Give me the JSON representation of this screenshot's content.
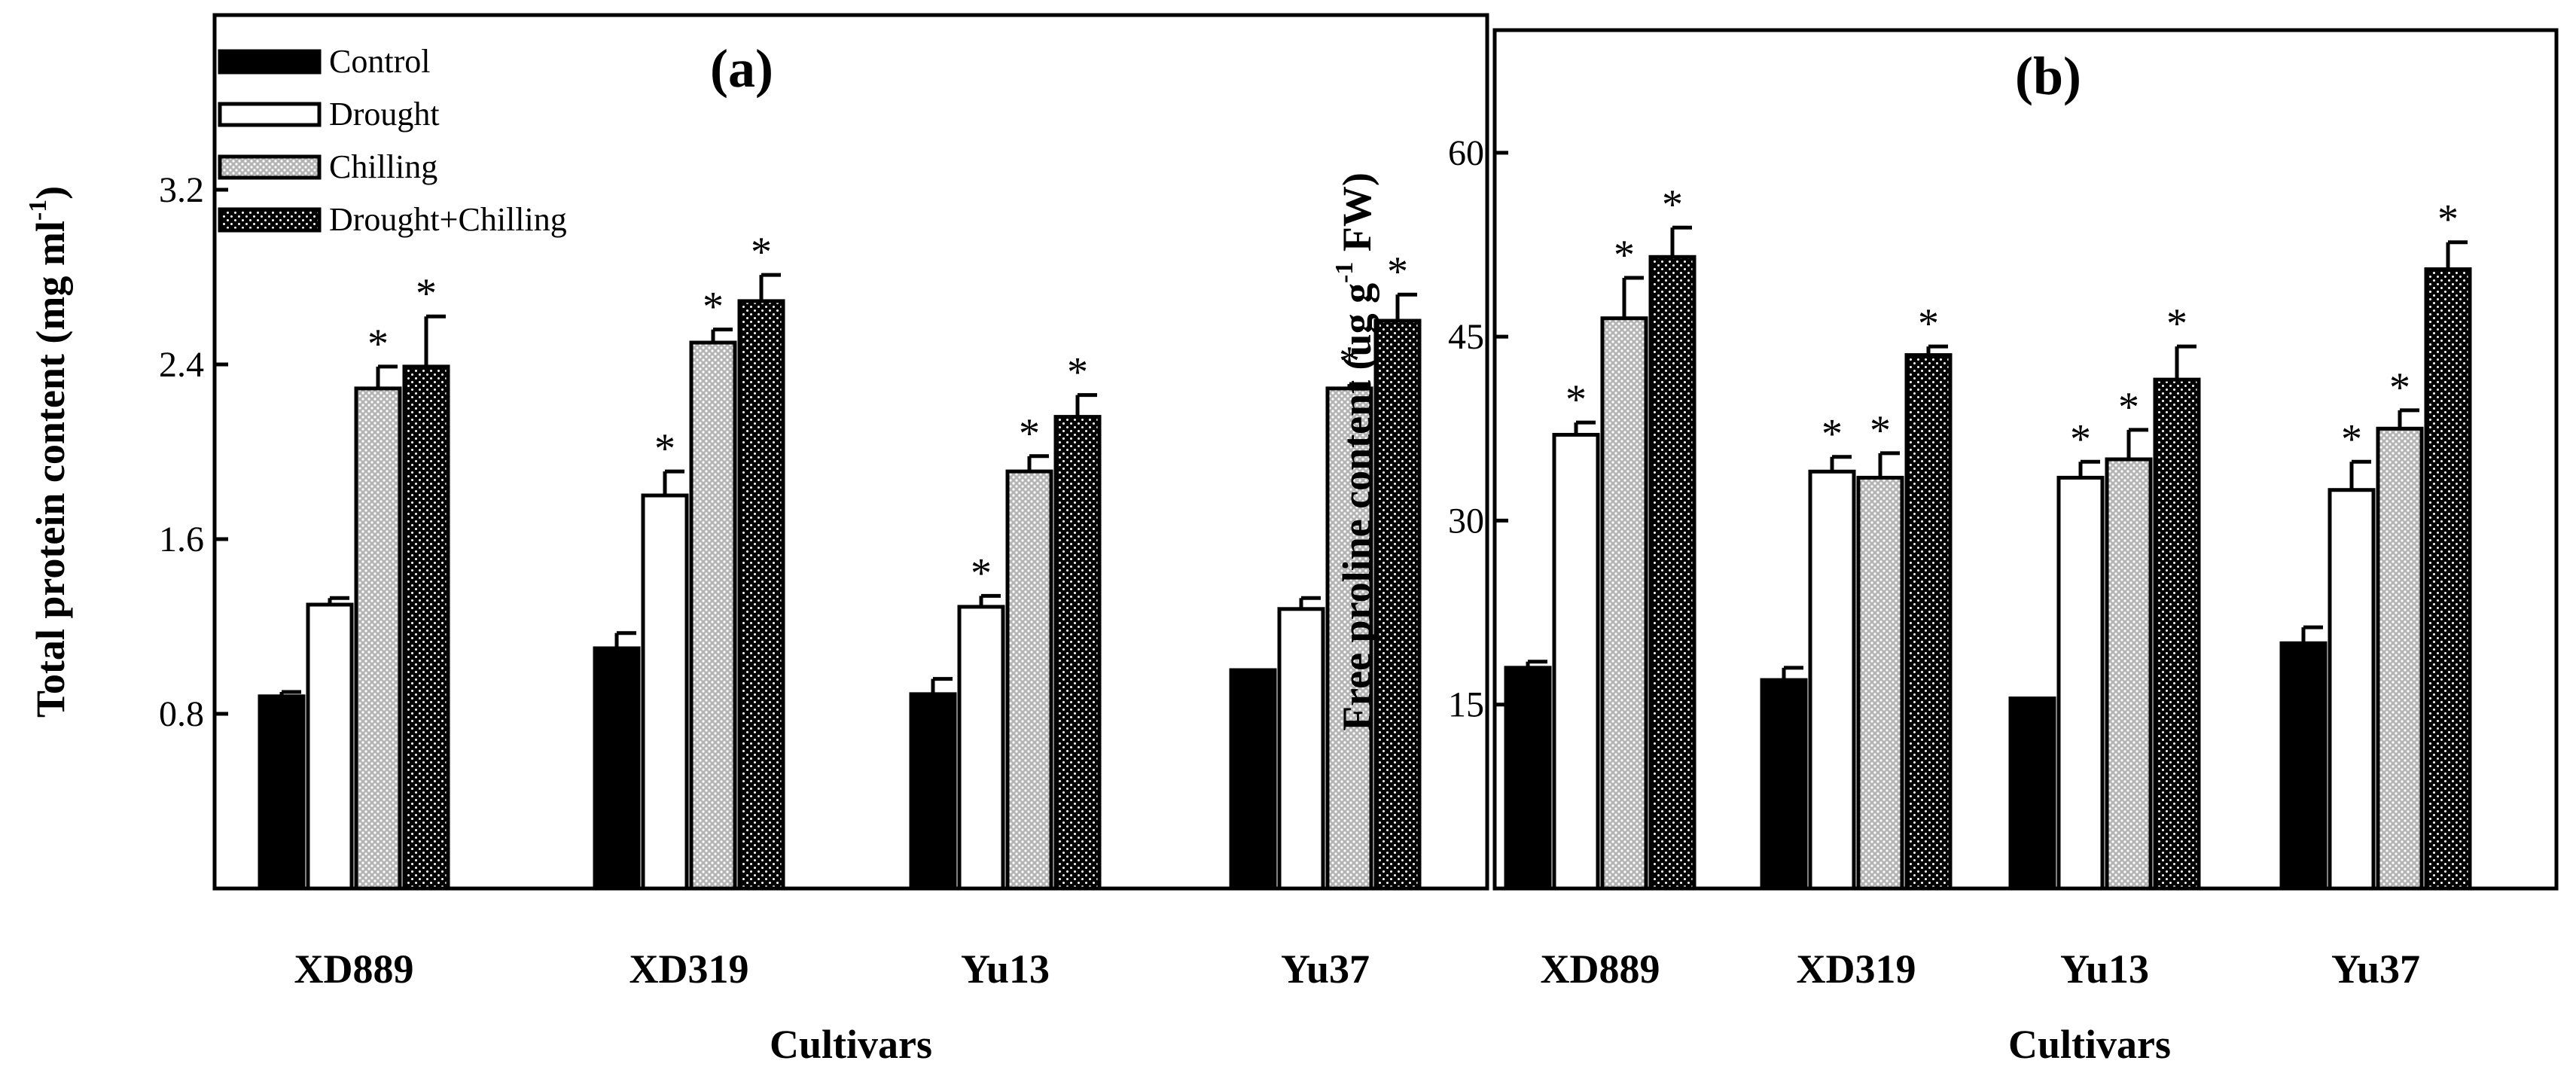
{
  "colors": {
    "Control": "#000000",
    "Drought": "#ffffff",
    "Chilling": "#c8c8c8",
    "Drought+Chilling": "#111111"
  },
  "chart_data": [
    {
      "type": "bar",
      "panel": "(a)",
      "title": "(a)",
      "xlabel": "Cultivars",
      "ylabel": "Total protein content (mg ml-1)",
      "ylabel_parts": [
        "Total protein content (mg ml",
        "-1",
        ")"
      ],
      "ylim": [
        0,
        4.0
      ],
      "yticks": [
        0.8,
        1.6,
        2.4,
        3.2
      ],
      "ytick_labels": [
        "0.8",
        "1.6",
        "2.4",
        "3.2"
      ],
      "legend_position": "top-left",
      "categories": [
        "XD889",
        "XD319",
        "Yu13",
        "Yu37"
      ],
      "series": [
        {
          "name": "Control",
          "values": [
            0.88,
            1.1,
            0.89,
            1.0
          ],
          "errors": [
            0.02,
            0.07,
            0.07,
            0.0
          ],
          "sig": [
            "",
            "",
            "",
            ""
          ]
        },
        {
          "name": "Drought",
          "values": [
            1.3,
            1.8,
            1.29,
            1.28
          ],
          "errors": [
            0.03,
            0.11,
            0.05,
            0.05
          ],
          "sig": [
            "",
            "*",
            "*",
            ""
          ]
        },
        {
          "name": "Chilling",
          "values": [
            2.29,
            2.5,
            1.91,
            2.29
          ],
          "errors": [
            0.1,
            0.06,
            0.07,
            0.02
          ],
          "sig": [
            "*",
            "*",
            "*",
            "*"
          ]
        },
        {
          "name": "Drought+Chilling",
          "values": [
            2.39,
            2.69,
            2.16,
            2.6
          ],
          "errors": [
            0.23,
            0.12,
            0.1,
            0.12
          ],
          "sig": [
            "*",
            "*",
            "*",
            "*"
          ]
        }
      ]
    },
    {
      "type": "bar",
      "panel": "(b)",
      "title": "(b)",
      "xlabel": "Cultivars",
      "ylabel": "Free proline content (ug g-1 FW)",
      "ylabel_parts": [
        "Free proline content (ug g",
        "-1",
        " FW)"
      ],
      "ylim": [
        0,
        70
      ],
      "yticks": [
        15,
        30,
        45,
        60
      ],
      "ytick_labels": [
        "15",
        "30",
        "45",
        "60"
      ],
      "categories": [
        "XD889",
        "XD319",
        "Yu13",
        "Yu37"
      ],
      "series": [
        {
          "name": "Control",
          "values": [
            18.0,
            17.0,
            15.5,
            20.0
          ],
          "errors": [
            0.5,
            1.0,
            0.0,
            1.3
          ],
          "sig": [
            "",
            "",
            "",
            ""
          ]
        },
        {
          "name": "Drought",
          "values": [
            37.0,
            34.0,
            33.5,
            32.5
          ],
          "errors": [
            1.0,
            1.2,
            1.3,
            2.3
          ],
          "sig": [
            "*",
            "*",
            "*",
            "*"
          ]
        },
        {
          "name": "Chilling",
          "values": [
            46.5,
            33.5,
            35.0,
            37.5
          ],
          "errors": [
            3.3,
            2.0,
            2.4,
            1.5
          ],
          "sig": [
            "*",
            "*",
            "*",
            "*"
          ]
        },
        {
          "name": "Drought+Chilling",
          "values": [
            51.5,
            43.5,
            41.5,
            50.5
          ],
          "errors": [
            2.4,
            0.7,
            2.7,
            2.2
          ],
          "sig": [
            "*",
            "*",
            "*",
            "*"
          ]
        }
      ]
    }
  ]
}
